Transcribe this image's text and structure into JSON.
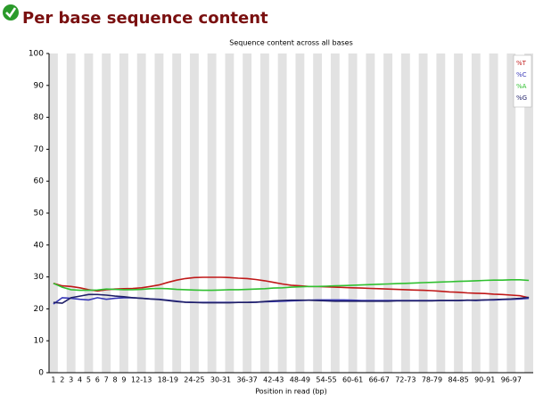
{
  "header": {
    "title": "Per base sequence content"
  },
  "chart_data": {
    "type": "line",
    "title": "Sequence content across all bases",
    "x_label": "Position in read (bp)",
    "categories": [
      "1",
      "2",
      "3",
      "4",
      "5",
      "6",
      "7",
      "8",
      "9",
      null,
      "12-13",
      null,
      null,
      "18-19",
      null,
      null,
      "24-25",
      null,
      null,
      "30-31",
      null,
      null,
      "36-37",
      null,
      null,
      "42-43",
      null,
      null,
      "48-49",
      null,
      null,
      "54-55",
      null,
      null,
      "60-61",
      null,
      null,
      "66-67",
      null,
      null,
      "72-73",
      null,
      null,
      "78-79",
      null,
      null,
      "84-85",
      null,
      null,
      "90-91",
      null,
      null,
      "96-97",
      null,
      null
    ],
    "series": [
      {
        "name": "%T",
        "color": "#c01818",
        "values": [
          28,
          27.2,
          27,
          26.6,
          26,
          25.6,
          26,
          26.2,
          26.3,
          26.4,
          26.6,
          27,
          27.5,
          28.3,
          29,
          29.5,
          29.8,
          29.9,
          29.9,
          29.9,
          29.8,
          29.6,
          29.5,
          29.2,
          28.8,
          28.3,
          27.8,
          27.4,
          27.2,
          27,
          27,
          26.9,
          26.8,
          26.7,
          26.6,
          26.5,
          26.4,
          26.3,
          26.2,
          26.1,
          26,
          25.9,
          25.8,
          25.7,
          25.5,
          25.3,
          25.2,
          25,
          24.9,
          24.8,
          24.6,
          24.5,
          24.3,
          24.1,
          23.5
        ]
      },
      {
        "name": "%C",
        "color": "#3838b8",
        "values": [
          21.5,
          23.5,
          23.3,
          23,
          22.8,
          23.5,
          23,
          23.3,
          23.5,
          23.5,
          23.3,
          23.1,
          23,
          22.7,
          22.4,
          22.1,
          22,
          22,
          22,
          22,
          22,
          22,
          22,
          22.1,
          22.2,
          22.3,
          22.4,
          22.5,
          22.6,
          22.7,
          22.8,
          22.8,
          22.8,
          22.8,
          22.7,
          22.6,
          22.6,
          22.6,
          22.6,
          22.6,
          22.6,
          22.6,
          22.6,
          22.6,
          22.6,
          22.6,
          22.6,
          22.7,
          22.6,
          22.8,
          22.8,
          22.9,
          23,
          23.1,
          23.3
        ]
      },
      {
        "name": "%A",
        "color": "#30c030",
        "values": [
          28,
          26.8,
          26,
          25.8,
          25.8,
          25.9,
          26.2,
          26.1,
          26,
          26,
          26.1,
          26.3,
          26.4,
          26.3,
          26.1,
          26,
          25.9,
          25.8,
          25.8,
          25.9,
          26,
          26,
          26.1,
          26.2,
          26.3,
          26.5,
          26.6,
          26.8,
          26.9,
          27,
          27,
          27.1,
          27.2,
          27.3,
          27.4,
          27.5,
          27.6,
          27.7,
          27.8,
          27.9,
          28,
          28.1,
          28.2,
          28.3,
          28.4,
          28.5,
          28.6,
          28.7,
          28.8,
          28.9,
          29,
          29,
          29.1,
          29.1,
          28.9
        ]
      },
      {
        "name": "%G",
        "color": "#202068",
        "values": [
          22,
          21.8,
          23.5,
          24,
          24.5,
          24.5,
          24.3,
          24,
          23.8,
          23.5,
          23.3,
          23.1,
          22.9,
          22.6,
          22.3,
          22.1,
          22,
          21.9,
          21.9,
          21.9,
          21.9,
          22,
          22,
          22.1,
          22.3,
          22.5,
          22.6,
          22.7,
          22.7,
          22.7,
          22.6,
          22.5,
          22.4,
          22.4,
          22.4,
          22.4,
          22.4,
          22.4,
          22.4,
          22.5,
          22.5,
          22.5,
          22.5,
          22.5,
          22.6,
          22.6,
          22.6,
          22.7,
          22.7,
          22.8,
          22.9,
          23,
          23.1,
          23.3,
          23.6
        ]
      }
    ],
    "ylim": [
      0,
      100
    ],
    "yticks": [
      0,
      10,
      20,
      30,
      40,
      50,
      60,
      70,
      80,
      90,
      100
    ],
    "legend": "top-right"
  }
}
